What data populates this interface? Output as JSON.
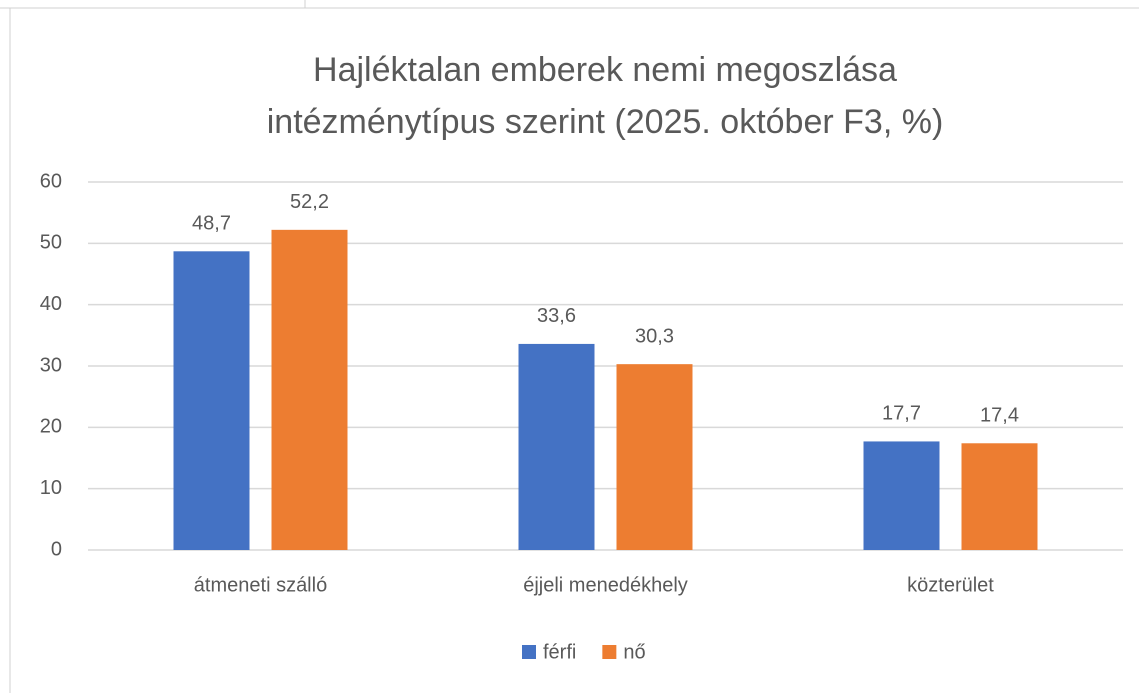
{
  "chart_data": {
    "type": "bar",
    "title": [
      "Hajléktalan emberek nemi megoszlása",
      "intézménytípus szerint (2025. október F3, %)"
    ],
    "categories": [
      "átmeneti szálló",
      "éjjeli menedékhely",
      "közterület"
    ],
    "series": [
      {
        "name": "férfi",
        "color": "#4472c4",
        "values": [
          48.7,
          33.6,
          17.7
        ],
        "value_labels": [
          "48,7",
          "33,6",
          "17,7"
        ]
      },
      {
        "name": "nő",
        "color": "#ed7d31",
        "values": [
          52.2,
          30.3,
          17.4
        ],
        "value_labels": [
          "52,2",
          "30,3",
          "17,4"
        ]
      }
    ],
    "ylim": [
      0,
      60
    ],
    "yticks": [
      0,
      10,
      20,
      30,
      40,
      50,
      60
    ],
    "grid": true,
    "legend": "bottom"
  }
}
